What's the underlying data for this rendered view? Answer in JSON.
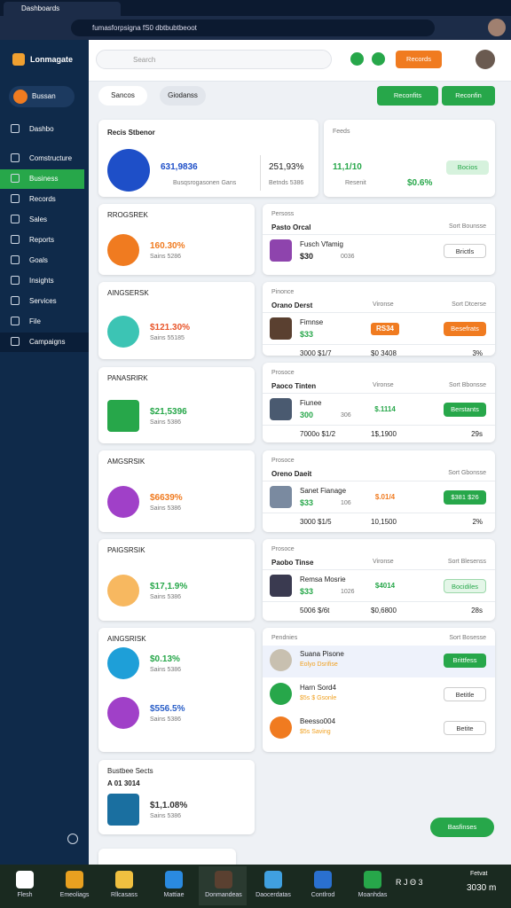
{
  "browser": {
    "tab_title": "Dashboards",
    "url": "fumasforpsigna fS0 dbtbubtbeoot"
  },
  "header": {
    "app_name": "Lonmagate",
    "search_placeholder": "Search",
    "button": "Records"
  },
  "sidebar": {
    "top": "Bussan",
    "items": [
      "Dashbo",
      "Comstructure",
      "Business",
      "Records",
      "Sales",
      "Reports",
      "Goals",
      "Insights",
      "Services",
      "File",
      "Campaigns"
    ],
    "active": 2
  },
  "toolbar": {
    "tabs": [
      "Sancos",
      "Giodanss"
    ],
    "buttons": [
      "Reconfits",
      "Reconfin"
    ]
  },
  "summary": {
    "title": "Recis Stbenor",
    "value": "631,9836",
    "sub": "Busqsrogasonen Gans",
    "right_value": "251,93%",
    "right_sub": "Betnds 5386"
  },
  "feeds": {
    "title": "Feeds",
    "value": "11,1/10",
    "label": "Resenit",
    "pct": "$0.6%",
    "button": "Bocios"
  },
  "left_cards": [
    {
      "title": "RROGSREK",
      "items": [
        {
          "icon_color": "#f07b20",
          "value": "160.30%",
          "value_color": "#f07b20",
          "sub": "Sains 5286"
        }
      ]
    },
    {
      "title": "AINGSERSK",
      "items": [
        {
          "icon_color": "#3cc4b4",
          "value": "$121.30%",
          "value_color": "#e8552a",
          "sub": "Sains 55185"
        }
      ]
    },
    {
      "title": "PANASRIRK",
      "items": [
        {
          "icon_color": "#27a74a",
          "value": "$21,5396",
          "value_color": "#27a74a",
          "sub": "Sains 5386"
        }
      ]
    },
    {
      "title": "AMGSRSIK",
      "items": [
        {
          "icon_color": "#a040c8",
          "value": "$6639%",
          "value_color": "#f07b20",
          "sub": "Sains 5386"
        }
      ]
    },
    {
      "title": "PAIGSRSIK",
      "items": [
        {
          "icon_color": "#f7b860",
          "value": "$17,1.9%",
          "value_color": "#27a74a",
          "sub": "Sains 5386"
        }
      ]
    },
    {
      "title": "AINGSRISK",
      "items": [
        {
          "icon_color": "#1e9fd8",
          "value": "$0.13%",
          "value_color": "#27a74a",
          "sub": "Sains 5386"
        },
        {
          "icon_color": "#a040c8",
          "value": "$556.5%",
          "value_color": "#2a5fc8",
          "sub": "Sains 5386"
        }
      ]
    },
    {
      "title": "Bustbee Sects",
      "subtitle": "A 01 3014",
      "items": [
        {
          "icon_color": "#1a6fa0",
          "value": "$1,1.08%",
          "value_color": "#333333",
          "sub": "Sains 5386"
        }
      ]
    }
  ],
  "right_cards": [
    {
      "label": "Persoss",
      "title": "Pasto Orcal",
      "sort": "Sort Bounsse",
      "rows": [
        {
          "icon_color": "#8e44ad",
          "name": "Fusch Vfamig",
          "price": "$30",
          "qty": "0036",
          "button": "Brictls",
          "style": "outline"
        }
      ]
    },
    {
      "label": "Pinonce",
      "title": "Orano Derst",
      "col": "Vironse",
      "sort": "Sort Dtcerse",
      "rows": [
        {
          "icon_color": "#5a4030",
          "name": "Fimnse",
          "price": "$33",
          "pill": "RS34",
          "pill_color": "#f07b20",
          "button": "Besefrats",
          "style": "orange",
          "foot": [
            "3000 $1/7",
            "$0 3408",
            "3%"
          ]
        }
      ]
    },
    {
      "label": "Prosoce",
      "title": "Paoco Tinten",
      "col": "Vironse",
      "sort": "Sort Bbonsse",
      "rows": [
        {
          "icon_color": "#4a5a70",
          "name": "Fiunee",
          "price": "300",
          "qty": "306",
          "pill": "$.1114",
          "pill_color": "#27a74a",
          "button": "Berstants",
          "style": "green",
          "foot": [
            "7000o $1/2",
            "1$,1900",
            "29s"
          ]
        }
      ]
    },
    {
      "label": "Prosoce",
      "title": "Oreno Daeit",
      "sort": "Sort Gbonsse",
      "rows": [
        {
          "icon_color": "#7a8aa0",
          "name": "Sanet Fianage",
          "price": "$33",
          "qty": "106",
          "pill": "$.01/4",
          "pill_color": "#f07b20",
          "button": "$381 $26",
          "style": "green",
          "foot": [
            "3000 $1/5",
            "10,1500",
            "2%"
          ]
        }
      ]
    },
    {
      "label": "Prosoce",
      "title": "Paobo Tinse",
      "col": "Vironse",
      "sort": "Sort Blesenss",
      "rows": [
        {
          "icon_color": "#3a3a50",
          "name": "Remsa Mosrie",
          "price": "$33",
          "qty": "1026",
          "pill": "$4014",
          "pill_color": "#27a74a",
          "button": "Bocidiles",
          "style": "light",
          "foot": [
            "5006 $/6t",
            "$0,6800",
            "28s"
          ]
        }
      ]
    },
    {
      "label": "Pendnies",
      "sort": "Sort Bosesse",
      "rows": [
        {
          "icon_color": "#c8c0b0",
          "name": "Suana Pisone",
          "sub": "Eolyo Dsrifise",
          "button": "Brittfess",
          "style": "green"
        },
        {
          "icon_color": "#27a74a",
          "name": "Harn Sord4",
          "sub": "$5s $ Gsonle",
          "button": "Betitle",
          "style": "outline"
        },
        {
          "icon_color": "#f07b20",
          "name": "Beesso004",
          "sub": "$5s Saving",
          "button": "Betite",
          "style": "outline"
        }
      ]
    }
  ],
  "float_button": "Basfinses",
  "taskbar": {
    "apps": [
      {
        "label": "Flesh",
        "color": "#ffffff"
      },
      {
        "label": "Emeoliags",
        "color": "#e8a020"
      },
      {
        "label": "Rllcasass",
        "color": "#f0c040"
      },
      {
        "label": "Mattiae",
        "color": "#2a8ae0"
      },
      {
        "label": "Donmandeas",
        "color": "#5a4030"
      },
      {
        "label": "Daocerdatas",
        "color": "#40a0e0"
      },
      {
        "label": "Contlrod",
        "color": "#2a70d0"
      },
      {
        "label": "Moanhdas",
        "color": "#27a74a"
      }
    ],
    "tray": "R J Θ 3",
    "time": "3030 m",
    "date": "Fetvat"
  }
}
